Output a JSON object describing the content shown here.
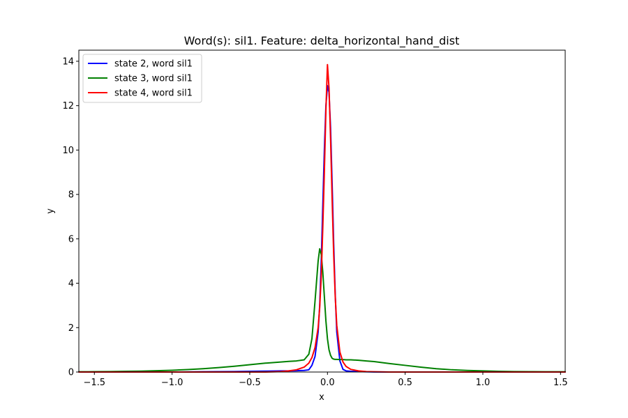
{
  "chart_data": {
    "type": "line",
    "title": "Word(s): sil1. Feature: delta_horizontal_hand_dist",
    "xlabel": "x",
    "ylabel": "y",
    "xlim": [
      -1.6,
      1.53
    ],
    "ylim": [
      0,
      14.5
    ],
    "xticks": [
      -1.5,
      -1.0,
      -0.5,
      0.0,
      0.5,
      1.0,
      1.5
    ],
    "xtick_labels": [
      "−1.5",
      "−1.0",
      "−0.5",
      "0.0",
      "0.5",
      "1.0",
      "1.5"
    ],
    "yticks": [
      0,
      2,
      4,
      6,
      8,
      10,
      12,
      14
    ],
    "ytick_labels": [
      "0",
      "2",
      "4",
      "6",
      "8",
      "10",
      "12",
      "14"
    ],
    "grid": false,
    "legend_position": "top-left",
    "x": [
      -1.6,
      -1.5,
      -1.4,
      -1.3,
      -1.2,
      -1.1,
      -1.0,
      -0.9,
      -0.8,
      -0.7,
      -0.6,
      -0.5,
      -0.4,
      -0.3,
      -0.25,
      -0.2,
      -0.15,
      -0.12,
      -0.1,
      -0.08,
      -0.06,
      -0.05,
      -0.04,
      -0.03,
      -0.02,
      -0.01,
      0.0,
      0.01,
      0.02,
      0.03,
      0.04,
      0.05,
      0.06,
      0.08,
      0.1,
      0.12,
      0.15,
      0.2,
      0.25,
      0.3,
      0.4,
      0.5,
      0.6,
      0.7,
      0.8,
      0.9,
      1.0,
      1.1,
      1.2,
      1.3,
      1.4,
      1.5,
      1.53
    ],
    "series": [
      {
        "name": "state 2, word sil1",
        "color": "#0000ff",
        "values": [
          0,
          0,
          0,
          0,
          0,
          0,
          0,
          0.005,
          0.01,
          0.015,
          0.02,
          0.03,
          0.04,
          0.05,
          0.05,
          0.06,
          0.07,
          0.1,
          0.3,
          0.7,
          1.8,
          3.0,
          5.0,
          7.5,
          10.0,
          12.0,
          12.9,
          12.6,
          11.0,
          8.5,
          5.8,
          3.5,
          1.8,
          0.5,
          0.12,
          0.05,
          0.03,
          0.02,
          0.01,
          0.005,
          0,
          0,
          0,
          0,
          0,
          0,
          0,
          0,
          0,
          0,
          0,
          0,
          0
        ]
      },
      {
        "name": "state 3, word sil1",
        "color": "#008000",
        "values": [
          0.01,
          0.015,
          0.02,
          0.03,
          0.04,
          0.06,
          0.08,
          0.11,
          0.15,
          0.2,
          0.26,
          0.33,
          0.4,
          0.45,
          0.48,
          0.5,
          0.55,
          0.8,
          1.5,
          3.2,
          5.0,
          5.55,
          5.3,
          4.5,
          3.4,
          2.3,
          1.5,
          1.0,
          0.75,
          0.62,
          0.58,
          0.57,
          0.57,
          0.56,
          0.56,
          0.55,
          0.55,
          0.53,
          0.5,
          0.47,
          0.38,
          0.3,
          0.22,
          0.15,
          0.1,
          0.07,
          0.05,
          0.03,
          0.02,
          0.015,
          0.01,
          0.01,
          0.01
        ]
      },
      {
        "name": "state 4, word sil1",
        "color": "#ff0000",
        "values": [
          0,
          0,
          0,
          0,
          0,
          0,
          0,
          0,
          0,
          0,
          0,
          0,
          0,
          0.02,
          0.05,
          0.1,
          0.22,
          0.4,
          0.65,
          1.1,
          2.0,
          2.9,
          4.3,
          6.5,
          9.0,
          11.8,
          13.85,
          12.8,
          10.5,
          7.8,
          5.3,
          3.4,
          2.1,
          0.9,
          0.45,
          0.25,
          0.12,
          0.05,
          0.02,
          0.01,
          0,
          0,
          0,
          0,
          0,
          0,
          0,
          0,
          0,
          0,
          0,
          0,
          0
        ]
      }
    ]
  }
}
